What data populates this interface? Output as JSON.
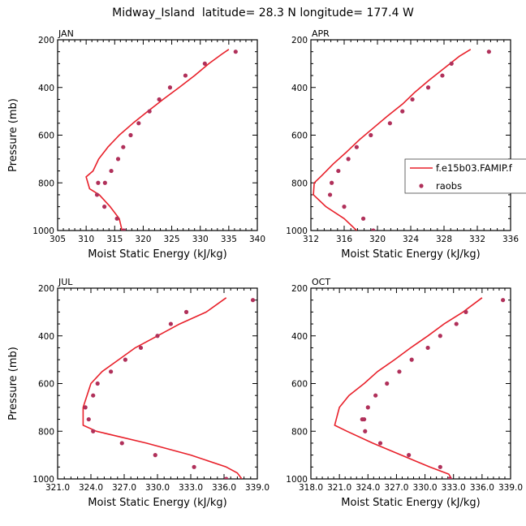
{
  "figure_title": "Midway_Island  latitude= 28.3 N longitude= 177.4 W",
  "legend": {
    "model_label": "f.e15b03.FAMIP.f",
    "obs_label": "raobs"
  },
  "colors": {
    "model": "#e8202a",
    "obs": "#b0305a",
    "axis": "#000000"
  },
  "chart_data": [
    {
      "type": "line",
      "panel_label": "JAN",
      "xlabel": "Moist Static Energy (kJ/kg)",
      "ylabel": "Pressure (mb)",
      "xlim": [
        305,
        340
      ],
      "ylim": [
        1000,
        200
      ],
      "y_inverted": true,
      "xticks": [
        305,
        310,
        315,
        320,
        325,
        330,
        335,
        340
      ],
      "xtick_labels": [
        "305",
        "310",
        "315",
        "320",
        "325",
        "330",
        "335",
        "340"
      ],
      "yticks": [
        200,
        400,
        600,
        800,
        1000
      ],
      "ytick_labels": [
        "200",
        "400",
        "600",
        "800",
        "1000"
      ],
      "model": {
        "mse": [
          335.0,
          333.8,
          331.5,
          329.0,
          326.3,
          323.5,
          320.8,
          318.2,
          315.8,
          313.8,
          312.2,
          311.2,
          310.0,
          310.6,
          312.3,
          314.2,
          315.8,
          316.3
        ],
        "pressure": [
          240,
          260,
          300,
          350,
          400,
          450,
          500,
          550,
          600,
          650,
          700,
          750,
          775,
          825,
          850,
          900,
          950,
          1000
        ]
      },
      "obs": {
        "mse": [
          336.2,
          330.8,
          327.4,
          324.7,
          322.8,
          321.1,
          319.2,
          317.8,
          316.5,
          315.6,
          314.4,
          313.3,
          312.1,
          311.9,
          313.2,
          315.4,
          316.6
        ],
        "pressure": [
          250,
          300,
          350,
          400,
          450,
          500,
          550,
          600,
          650,
          700,
          750,
          800,
          800,
          850,
          900,
          950,
          1000
        ]
      }
    },
    {
      "type": "line",
      "panel_label": "APR",
      "xlabel": "Moist Static Energy (kJ/kg)",
      "ylabel": "",
      "xlim": [
        312,
        336
      ],
      "ylim": [
        1000,
        200
      ],
      "y_inverted": true,
      "xticks": [
        312,
        316,
        320,
        324,
        328,
        332,
        336
      ],
      "xtick_labels": [
        "312",
        "316",
        "320",
        "324",
        "328",
        "332",
        "336"
      ],
      "yticks": [
        200,
        400,
        600,
        800,
        1000
      ],
      "ytick_labels": [
        "200",
        "400",
        "600",
        "800",
        "1000"
      ],
      "model": {
        "mse": [
          331.2,
          329.8,
          328.0,
          326.2,
          324.5,
          323.0,
          321.2,
          319.5,
          317.8,
          316.3,
          314.7,
          313.3,
          312.4,
          312.3,
          313.8,
          316.0,
          317.5
        ],
        "pressure": [
          240,
          270,
          320,
          370,
          420,
          470,
          520,
          570,
          620,
          670,
          720,
          770,
          800,
          850,
          900,
          950,
          1000
        ]
      },
      "obs": {
        "mse": [
          333.4,
          328.9,
          327.8,
          326.1,
          324.2,
          323.0,
          321.5,
          319.2,
          317.5,
          316.5,
          315.3,
          314.5,
          314.3,
          316.0,
          318.3,
          319.5
        ],
        "pressure": [
          250,
          300,
          350,
          400,
          450,
          500,
          550,
          600,
          650,
          700,
          750,
          800,
          850,
          900,
          950,
          1000
        ]
      }
    },
    {
      "type": "line",
      "panel_label": "JUL",
      "xlabel": "Moist Static Energy (kJ/kg)",
      "ylabel": "Pressure (mb)",
      "xlim": [
        321.0,
        339.0
      ],
      "ylim": [
        1000,
        200
      ],
      "y_inverted": true,
      "xticks": [
        321.0,
        324.0,
        327.0,
        330.0,
        333.0,
        336.0,
        339.0
      ],
      "xtick_labels": [
        "321.0",
        "324.0",
        "327.0",
        "330.0",
        "333.0",
        "336.0",
        "339.0"
      ],
      "yticks": [
        200,
        400,
        600,
        800,
        1000
      ],
      "ytick_labels": [
        "200",
        "400",
        "600",
        "800",
        "1000"
      ],
      "model": {
        "mse": [
          336.2,
          334.4,
          332.0,
          330.0,
          328.0,
          326.5,
          325.0,
          324.0,
          323.3,
          323.3,
          324.5,
          329.0,
          333.0,
          336.2,
          337.2,
          337.6
        ],
        "pressure": [
          240,
          300,
          350,
          400,
          450,
          500,
          550,
          600,
          700,
          775,
          800,
          850,
          900,
          950,
          975,
          1000
        ]
      },
      "obs": {
        "mse": [
          338.6,
          332.6,
          331.2,
          330.0,
          328.5,
          327.1,
          325.8,
          324.6,
          324.2,
          323.5,
          323.8,
          324.2,
          326.8,
          329.8,
          333.3,
          336.2
        ],
        "pressure": [
          250,
          300,
          350,
          400,
          450,
          500,
          550,
          600,
          650,
          700,
          750,
          800,
          850,
          900,
          950,
          1000
        ]
      }
    },
    {
      "type": "line",
      "panel_label": "OCT",
      "xlabel": "Moist Static Energy (kJ/kg)",
      "ylabel": "",
      "xlim": [
        318.0,
        339.0
      ],
      "ylim": [
        1000,
        200
      ],
      "y_inverted": true,
      "xticks": [
        318.0,
        321.0,
        324.0,
        327.0,
        330.0,
        333.0,
        336.0,
        339.0
      ],
      "xtick_labels": [
        "318.0",
        "321.0",
        "324.0",
        "327.0",
        "330.0",
        "333.0",
        "336.0",
        "339.0"
      ],
      "yticks": [
        200,
        400,
        600,
        800,
        1000
      ],
      "ytick_labels": [
        "200",
        "400",
        "600",
        "800",
        "1000"
      ],
      "model": {
        "mse": [
          336.0,
          334.0,
          332.0,
          330.3,
          328.5,
          326.8,
          325.0,
          323.6,
          322.0,
          321.0,
          320.5,
          321.8,
          324.5,
          327.5,
          330.5,
          332.5,
          332.8
        ],
        "pressure": [
          240,
          300,
          350,
          400,
          450,
          500,
          550,
          600,
          650,
          700,
          775,
          800,
          850,
          900,
          950,
          980,
          1000
        ]
      },
      "obs": {
        "mse": [
          338.2,
          334.3,
          333.3,
          331.6,
          330.3,
          328.6,
          327.3,
          326.0,
          324.8,
          324.0,
          323.6,
          323.4,
          323.7,
          325.3,
          328.3,
          331.6,
          332.6
        ],
        "pressure": [
          250,
          300,
          350,
          400,
          450,
          500,
          550,
          600,
          650,
          700,
          750,
          750,
          800,
          850,
          900,
          950,
          1000
        ]
      }
    }
  ]
}
